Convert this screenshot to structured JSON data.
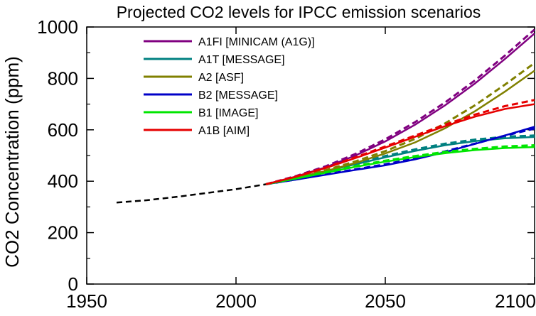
{
  "chart_data": {
    "type": "line",
    "title": "Projected CO2 levels for IPCC emission scenarios",
    "xlabel": "",
    "ylabel": "CO2 Concentration (ppm)",
    "xlim": [
      1950,
      2100
    ],
    "ylim": [
      0,
      1000
    ],
    "x_ticks": [
      1950,
      2000,
      2050,
      2100
    ],
    "y_ticks": [
      0,
      200,
      400,
      600,
      800,
      1000
    ],
    "grid": false,
    "legend_position": "top-left",
    "historical": {
      "style": "dashed",
      "color": "#000000",
      "x": [
        1960,
        1970,
        1980,
        1990,
        2000,
        2010
      ],
      "y": [
        317,
        326,
        339,
        354,
        369,
        388
      ]
    },
    "series": [
      {
        "name": "A1FI [MINICAM (A1G)]",
        "color": "#800080",
        "x": [
          2010,
          2020,
          2030,
          2040,
          2050,
          2060,
          2070,
          2080,
          2090,
          2100
        ],
        "y": [
          388,
          418,
          454,
          500,
          555,
          620,
          695,
          780,
          875,
          975
        ],
        "y_dashed": [
          388,
          420,
          458,
          506,
          563,
          630,
          706,
          792,
          888,
          990
        ]
      },
      {
        "name": "A1T [MESSAGE]",
        "color": "#008080",
        "x": [
          2010,
          2020,
          2030,
          2040,
          2050,
          2060,
          2070,
          2080,
          2090,
          2100
        ],
        "y": [
          388,
          413,
          439,
          466,
          493,
          518,
          540,
          556,
          567,
          572
        ],
        "y_dashed": [
          388,
          414,
          442,
          470,
          498,
          524,
          546,
          562,
          573,
          578
        ]
      },
      {
        "name": "A2 [ASF]",
        "color": "#808000",
        "x": [
          2010,
          2020,
          2030,
          2040,
          2050,
          2060,
          2070,
          2080,
          2090,
          2100
        ],
        "y": [
          388,
          412,
          439,
          471,
          508,
          551,
          606,
          672,
          748,
          830
        ],
        "y_dashed": [
          388,
          414,
          443,
          477,
          517,
          565,
          625,
          695,
          775,
          860
        ]
      },
      {
        "name": "B2 [MESSAGE]",
        "color": "#0000c8",
        "x": [
          2010,
          2020,
          2030,
          2040,
          2050,
          2060,
          2070,
          2080,
          2090,
          2100
        ],
        "y": [
          388,
          406,
          425,
          444,
          462,
          485,
          513,
          545,
          578,
          612
        ],
        "y_dashed": [
          388,
          407,
          427,
          446,
          466,
          489,
          516,
          546,
          577,
          605
        ]
      },
      {
        "name": "B1 [IMAGE]",
        "color": "#00e600",
        "x": [
          2010,
          2020,
          2030,
          2040,
          2050,
          2060,
          2070,
          2080,
          2090,
          2100
        ],
        "y": [
          388,
          410,
          433,
          456,
          476,
          494,
          509,
          521,
          529,
          533
        ],
        "y_dashed": [
          388,
          411,
          435,
          459,
          480,
          498,
          514,
          526,
          535,
          540
        ]
      },
      {
        "name": "A1B [AIM]",
        "color": "#e60000",
        "x": [
          2010,
          2020,
          2030,
          2040,
          2050,
          2060,
          2070,
          2080,
          2090,
          2100
        ],
        "y": [
          388,
          417,
          451,
          490,
          531,
          573,
          614,
          651,
          681,
          700
        ],
        "y_dashed": [
          388,
          418,
          453,
          493,
          535,
          578,
          620,
          659,
          692,
          716
        ]
      }
    ]
  }
}
